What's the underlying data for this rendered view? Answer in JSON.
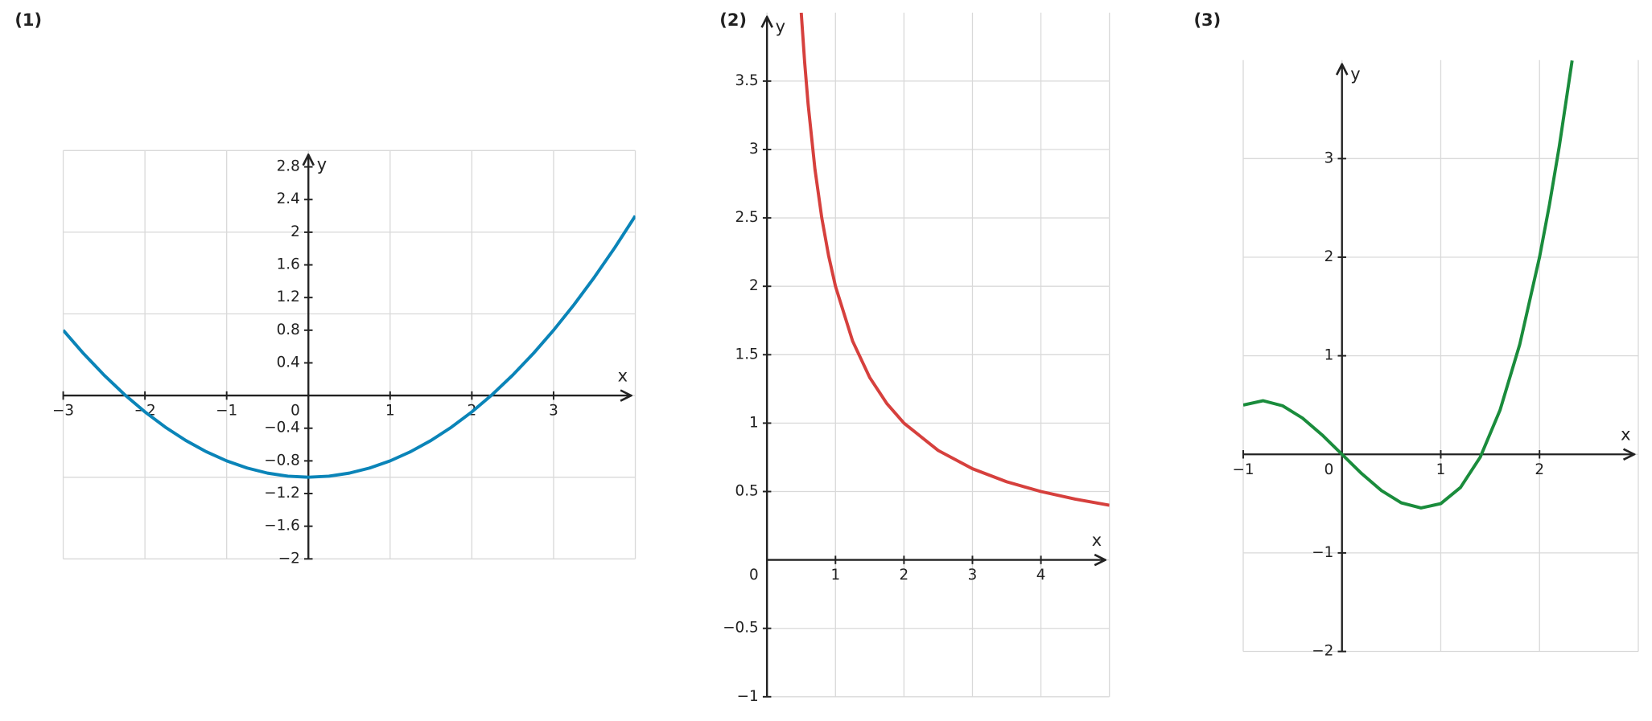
{
  "chart_data": [
    {
      "type": "line",
      "panel_label": "(1)",
      "x_label": "x",
      "y_label": "y",
      "origin_label": "0",
      "xlim": [
        -3,
        4
      ],
      "ylim": [
        -2,
        3
      ],
      "xticks": [
        {
          "value": -3,
          "label": "−3"
        },
        {
          "value": -2,
          "label": "−2"
        },
        {
          "value": -1,
          "label": "−1"
        },
        1,
        2,
        3
      ],
      "yticks": [
        {
          "value": -2,
          "label": "−2"
        },
        {
          "value": -1.6,
          "label": "−1.6"
        },
        {
          "value": -1.2,
          "label": "−1.2"
        },
        {
          "value": -0.8,
          "label": "−0.8"
        },
        {
          "value": -0.4,
          "label": "−0.4"
        },
        0.4,
        0.8,
        1.2,
        1.6,
        2,
        2.4,
        2.8
      ],
      "xgrid": [
        -3,
        -2,
        -1,
        0,
        1,
        2,
        3,
        4
      ],
      "ygrid": [
        -2,
        -1,
        0,
        1,
        2,
        3
      ],
      "series": [
        {
          "color": "#0a84b8",
          "x": [
            -3,
            -2.75,
            -2.5,
            -2.25,
            -2,
            -1.75,
            -1.5,
            -1.25,
            -1,
            -0.75,
            -0.5,
            -0.25,
            0,
            0.25,
            0.5,
            0.75,
            1,
            1.25,
            1.5,
            1.75,
            2,
            2.25,
            2.5,
            2.75,
            3,
            3.25,
            3.5,
            3.75,
            4
          ],
          "values": [
            0.8,
            0.5125,
            0.25,
            0.0125,
            -0.2,
            -0.3875,
            -0.55,
            -0.6875,
            -0.8,
            -0.8875,
            -0.95,
            -0.9875,
            -1,
            -0.9875,
            -0.95,
            -0.8875,
            -0.8,
            -0.6875,
            -0.55,
            -0.3875,
            -0.2,
            0.0125,
            0.25,
            0.5125,
            0.8,
            1.1125,
            1.45,
            1.8125,
            2.2
          ]
        }
      ]
    },
    {
      "type": "line",
      "panel_label": "(2)",
      "x_label": "x",
      "y_label": "y",
      "origin_label": "0",
      "xlim": [
        0,
        5
      ],
      "ylim": [
        -1,
        4
      ],
      "xticks": [
        1,
        2,
        3,
        4
      ],
      "yticks": [
        {
          "value": -1,
          "label": "−1"
        },
        {
          "value": -0.5,
          "label": "−0.5"
        },
        0.5,
        1,
        1.5,
        2,
        2.5,
        3,
        3.5
      ],
      "xgrid": [
        0,
        1,
        2,
        3,
        4,
        5
      ],
      "ygrid": [
        -1,
        -0.5,
        0,
        0.5,
        1,
        1.5,
        2,
        2.5,
        3,
        3.5
      ],
      "series": [
        {
          "color": "#d6403d",
          "x": [
            0.5,
            0.55,
            0.6,
            0.7,
            0.8,
            0.9,
            1,
            1.25,
            1.5,
            1.75,
            2,
            2.5,
            3,
            3.5,
            4,
            4.5,
            5
          ],
          "values": [
            4,
            3.6364,
            3.3333,
            2.8571,
            2.5,
            2.2222,
            2,
            1.6,
            1.3333,
            1.1429,
            1,
            0.8,
            0.6667,
            0.5714,
            0.5,
            0.4444,
            0.4
          ]
        }
      ]
    },
    {
      "type": "line",
      "panel_label": "(3)",
      "x_label": "x",
      "y_label": "y",
      "origin_label": "0",
      "xlim": [
        -1,
        3
      ],
      "ylim": [
        -2,
        4
      ],
      "xticks": [
        {
          "value": -1,
          "label": "−1"
        },
        1,
        2
      ],
      "yticks": [
        {
          "value": -2,
          "label": "−2"
        },
        {
          "value": -1,
          "label": "−1"
        },
        1,
        2,
        3
      ],
      "xgrid": [
        -1,
        0,
        1,
        2,
        3
      ],
      "ygrid": [
        -2,
        -1,
        0,
        1,
        2,
        3
      ],
      "series": [
        {
          "color": "#1a8c3c",
          "x": [
            -1,
            -0.8,
            -0.6,
            -0.4,
            -0.2,
            0,
            0.2,
            0.4,
            0.6,
            0.8,
            1,
            1.2,
            1.4,
            1.6,
            1.8,
            2,
            2.1,
            2.2,
            2.33
          ],
          "values": [
            0.5,
            0.544,
            0.492,
            0.368,
            0.196,
            0,
            -0.196,
            -0.368,
            -0.492,
            -0.544,
            -0.5,
            -0.336,
            -0.028,
            0.448,
            1.116,
            2,
            2.5305,
            3.124,
            3.9947
          ]
        }
      ]
    }
  ]
}
